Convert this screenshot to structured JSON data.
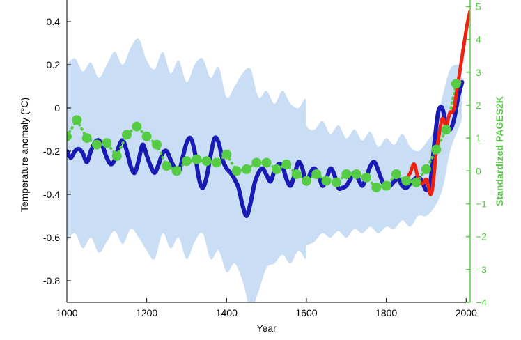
{
  "chart_data": {
    "type": "line",
    "title": "",
    "xlabel": "Year",
    "ylabel": "Temperature anomaly (°C)",
    "y2label": "Standardized PAGES2K",
    "xlim": [
      1000,
      2010
    ],
    "ylim": [
      -0.9,
      0.5
    ],
    "y2lim": [
      -4,
      5.2
    ],
    "x_ticks": [
      "1000",
      "1200",
      "1400",
      "1600",
      "1800",
      "2000"
    ],
    "y_ticks": [
      "0.4",
      "0.2",
      "0",
      "-0.2",
      "-0.4",
      "-0.6",
      "-0.8"
    ],
    "y2_ticks": [
      "5",
      "4",
      "3",
      "2",
      "1",
      "0",
      "−1",
      "−2",
      "−3",
      "−4"
    ],
    "grid": false,
    "colors": {
      "reconstruction": "#1a1ab4",
      "uncertainty": "#c9ddf5",
      "instrumental": "#ee2211",
      "pages2k": "#55cc44",
      "right_axis": "#55cc44"
    },
    "series": [
      {
        "key": "reconstruction",
        "style": "thick-line",
        "x": [
          1000,
          1010,
          1020,
          1030,
          1040,
          1050,
          1060,
          1070,
          1080,
          1090,
          1100,
          1110,
          1120,
          1130,
          1140,
          1150,
          1160,
          1170,
          1180,
          1190,
          1200,
          1210,
          1220,
          1230,
          1240,
          1250,
          1260,
          1270,
          1280,
          1290,
          1300,
          1310,
          1320,
          1330,
          1340,
          1350,
          1360,
          1370,
          1380,
          1390,
          1400,
          1410,
          1420,
          1430,
          1440,
          1450,
          1460,
          1470,
          1480,
          1490,
          1500,
          1510,
          1520,
          1530,
          1540,
          1550,
          1560,
          1570,
          1580,
          1590,
          1600,
          1610,
          1620,
          1630,
          1640,
          1650,
          1660,
          1670,
          1680,
          1690,
          1700,
          1710,
          1720,
          1730,
          1740,
          1750,
          1760,
          1770,
          1780,
          1790,
          1800,
          1810,
          1820,
          1830,
          1840,
          1850,
          1860,
          1870,
          1880,
          1890,
          1900,
          1910,
          1920,
          1930,
          1940,
          1950,
          1960,
          1970,
          1980,
          1990
        ],
        "y": [
          -0.2,
          -0.23,
          -0.2,
          -0.19,
          -0.21,
          -0.25,
          -0.2,
          -0.16,
          -0.15,
          -0.18,
          -0.23,
          -0.26,
          -0.24,
          -0.18,
          -0.15,
          -0.2,
          -0.27,
          -0.3,
          -0.24,
          -0.17,
          -0.22,
          -0.27,
          -0.3,
          -0.26,
          -0.21,
          -0.2,
          -0.24,
          -0.28,
          -0.3,
          -0.23,
          -0.16,
          -0.14,
          -0.2,
          -0.32,
          -0.37,
          -0.32,
          -0.22,
          -0.14,
          -0.16,
          -0.24,
          -0.28,
          -0.3,
          -0.33,
          -0.37,
          -0.45,
          -0.5,
          -0.44,
          -0.35,
          -0.3,
          -0.28,
          -0.31,
          -0.34,
          -0.29,
          -0.26,
          -0.27,
          -0.33,
          -0.36,
          -0.31,
          -0.25,
          -0.28,
          -0.35,
          -0.3,
          -0.28,
          -0.31,
          -0.36,
          -0.33,
          -0.28,
          -0.31,
          -0.37,
          -0.37,
          -0.36,
          -0.33,
          -0.3,
          -0.33,
          -0.36,
          -0.32,
          -0.27,
          -0.25,
          -0.29,
          -0.34,
          -0.37,
          -0.36,
          -0.34,
          -0.33,
          -0.36,
          -0.37,
          -0.35,
          -0.33,
          -0.32,
          -0.34,
          -0.38,
          -0.35,
          -0.17,
          -0.02,
          0.0,
          -0.08,
          -0.1,
          -0.05,
          0.05,
          0.12
        ]
      },
      {
        "key": "instrumental",
        "style": "thick-line",
        "x": [
          1850,
          1860,
          1870,
          1880,
          1890,
          1900,
          1905,
          1910,
          1915,
          1920,
          1925,
          1930,
          1935,
          1940,
          1945,
          1950,
          1955,
          1960,
          1965,
          1970,
          1975,
          1980,
          1985,
          1990,
          1995,
          2000,
          2005,
          2010
        ],
        "y": [
          -0.33,
          -0.3,
          -0.26,
          -0.33,
          -0.35,
          -0.33,
          -0.36,
          -0.4,
          -0.38,
          -0.3,
          -0.2,
          -0.15,
          -0.09,
          -0.05,
          -0.06,
          -0.09,
          -0.05,
          -0.02,
          -0.02,
          0.0,
          0.06,
          0.12,
          0.18,
          0.24,
          0.3,
          0.36,
          0.41,
          0.45
        ]
      },
      {
        "key": "uncertainty_upper",
        "style": "band-upper",
        "x": [
          1000,
          1020,
          1040,
          1060,
          1080,
          1100,
          1120,
          1140,
          1160,
          1180,
          1200,
          1220,
          1240,
          1260,
          1280,
          1300,
          1320,
          1340,
          1360,
          1380,
          1400,
          1420,
          1440,
          1460,
          1480,
          1500,
          1520,
          1540,
          1560,
          1580,
          1598,
          1600,
          1620,
          1640,
          1660,
          1680,
          1700,
          1720,
          1740,
          1760,
          1780,
          1800,
          1820,
          1840,
          1860,
          1880,
          1900,
          1920,
          1940,
          1960,
          1980,
          1990
        ],
        "y": [
          0.2,
          0.23,
          0.17,
          0.21,
          0.14,
          0.2,
          0.26,
          0.2,
          0.28,
          0.32,
          0.22,
          0.18,
          0.26,
          0.16,
          0.22,
          0.12,
          0.2,
          0.23,
          0.14,
          0.19,
          0.05,
          0.1,
          0.16,
          0.18,
          0.05,
          0.08,
          0.02,
          0.08,
          0.02,
          0.0,
          0.04,
          -0.08,
          -0.1,
          -0.06,
          -0.12,
          -0.08,
          -0.14,
          -0.1,
          -0.15,
          -0.11,
          -0.18,
          -0.14,
          -0.17,
          -0.12,
          -0.18,
          -0.2,
          -0.16,
          -0.1,
          0.05,
          0.18,
          0.2,
          0.2
        ]
      },
      {
        "key": "uncertainty_lower",
        "style": "band-lower",
        "x": [
          1000,
          1020,
          1040,
          1060,
          1080,
          1100,
          1120,
          1140,
          1160,
          1180,
          1200,
          1220,
          1240,
          1260,
          1280,
          1300,
          1320,
          1340,
          1360,
          1380,
          1400,
          1420,
          1440,
          1460,
          1480,
          1500,
          1520,
          1540,
          1560,
          1580,
          1598,
          1600,
          1620,
          1640,
          1660,
          1680,
          1700,
          1720,
          1740,
          1760,
          1780,
          1800,
          1820,
          1840,
          1860,
          1880,
          1900,
          1920,
          1940,
          1960,
          1980,
          1990
        ],
        "y": [
          -0.62,
          -0.58,
          -0.65,
          -0.6,
          -0.67,
          -0.62,
          -0.57,
          -0.63,
          -0.56,
          -0.6,
          -0.66,
          -0.7,
          -0.58,
          -0.65,
          -0.6,
          -0.7,
          -0.62,
          -0.58,
          -0.7,
          -0.66,
          -0.76,
          -0.72,
          -0.8,
          -0.93,
          -0.85,
          -0.74,
          -0.72,
          -0.68,
          -0.72,
          -0.66,
          -0.7,
          -0.64,
          -0.62,
          -0.58,
          -0.6,
          -0.57,
          -0.6,
          -0.56,
          -0.58,
          -0.55,
          -0.58,
          -0.55,
          -0.56,
          -0.52,
          -0.55,
          -0.5,
          -0.5,
          -0.46,
          -0.38,
          -0.2,
          -0.1,
          -0.05
        ]
      },
      {
        "key": "pages2k",
        "style": "dotted-line-markers",
        "axis": "right",
        "x": [
          1000,
          1025,
          1050,
          1075,
          1100,
          1125,
          1150,
          1175,
          1200,
          1225,
          1250,
          1275,
          1300,
          1325,
          1350,
          1375,
          1400,
          1425,
          1450,
          1475,
          1500,
          1525,
          1550,
          1575,
          1600,
          1625,
          1650,
          1675,
          1700,
          1725,
          1750,
          1775,
          1800,
          1825,
          1850,
          1875,
          1900,
          1925,
          1950,
          1975,
          1985
        ],
        "y": [
          1.05,
          1.55,
          1.0,
          0.8,
          0.85,
          0.45,
          1.1,
          1.35,
          1.05,
          0.8,
          0.15,
          0.0,
          0.3,
          0.35,
          0.3,
          0.25,
          0.5,
          0.0,
          0.05,
          0.25,
          0.25,
          0.05,
          0.2,
          -0.1,
          -0.3,
          -0.1,
          -0.3,
          -0.35,
          -0.1,
          -0.1,
          -0.2,
          -0.5,
          -0.45,
          -0.1,
          -0.3,
          -0.35,
          0.05,
          0.65,
          1.25,
          2.65,
          2.7
        ]
      }
    ]
  }
}
